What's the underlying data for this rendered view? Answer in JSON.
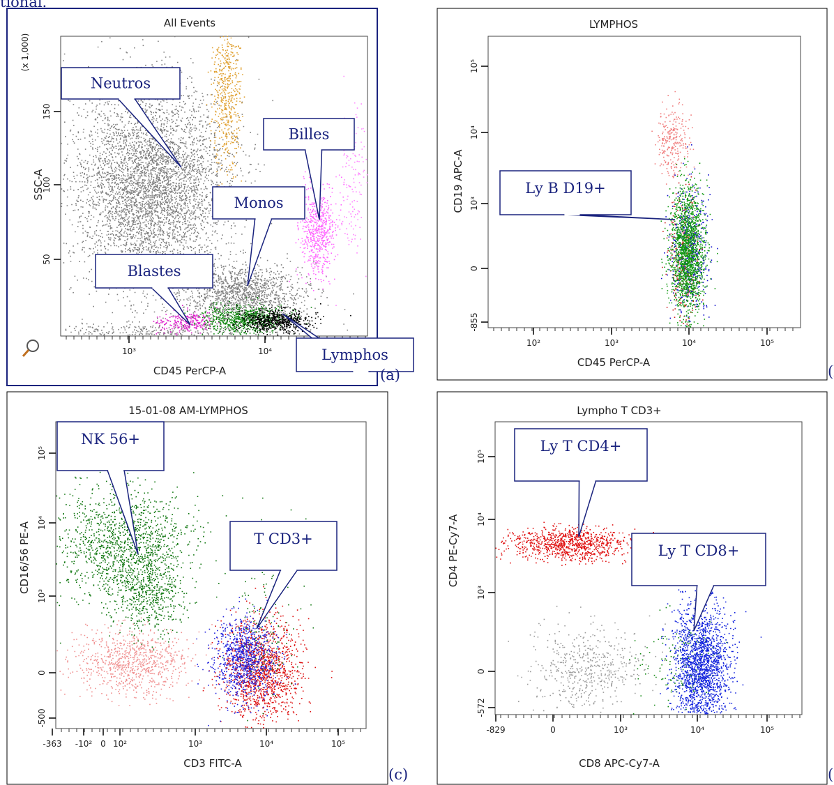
{
  "header_fragment": "tional.",
  "panels": [
    {
      "title": "All Events",
      "x_label": "CD45 PerCP-A",
      "y_label": "SSC-A",
      "y_label_2": "(x 1,000)",
      "x_ticks": [
        "10³",
        "10⁴"
      ],
      "y_ticks": [
        "150",
        "100",
        "50"
      ],
      "callouts": [
        "Neutros",
        "Billes",
        "Monos",
        "Blastes",
        "Lymphos"
      ],
      "panel_label": "(a)"
    },
    {
      "title": "LYMPHOS",
      "x_label": "CD45 PerCP-A",
      "y_label": "CD19 APC-A",
      "x_ticks": [
        "10²",
        "10³",
        "10⁴",
        "10⁵"
      ],
      "y_ticks": [
        "10⁵",
        "10⁴",
        "10³",
        "0",
        "-855"
      ],
      "callouts": [
        "Ly B D19+"
      ],
      "panel_label": "(b)"
    },
    {
      "title": "15-01-08 AM-LYMPHOS",
      "x_label": "CD3 FITC-A",
      "y_label": "CD16/56 PE-A",
      "x_ticks": [
        "-363",
        "-10²",
        "0",
        "10²",
        "10³",
        "10⁴",
        "10⁵"
      ],
      "y_ticks": [
        "10⁵",
        "10⁴",
        "10³",
        "0",
        "-500"
      ],
      "callouts": [
        "NK 56+",
        "T CD3+"
      ],
      "panel_label": "(c)"
    },
    {
      "title": "Lympho T CD3+",
      "x_label": "CD8 APC-Cy7-A",
      "y_label": "CD4 PE-Cy7-A",
      "x_ticks": [
        "-829",
        "0",
        "10³",
        "10⁴",
        "10⁵"
      ],
      "y_ticks": [
        "10⁵",
        "10⁴",
        "10³",
        "0",
        "-572"
      ],
      "callouts": [
        "Ly T CD4+",
        "Ly T CD8+"
      ],
      "panel_label": "(d)"
    }
  ]
}
